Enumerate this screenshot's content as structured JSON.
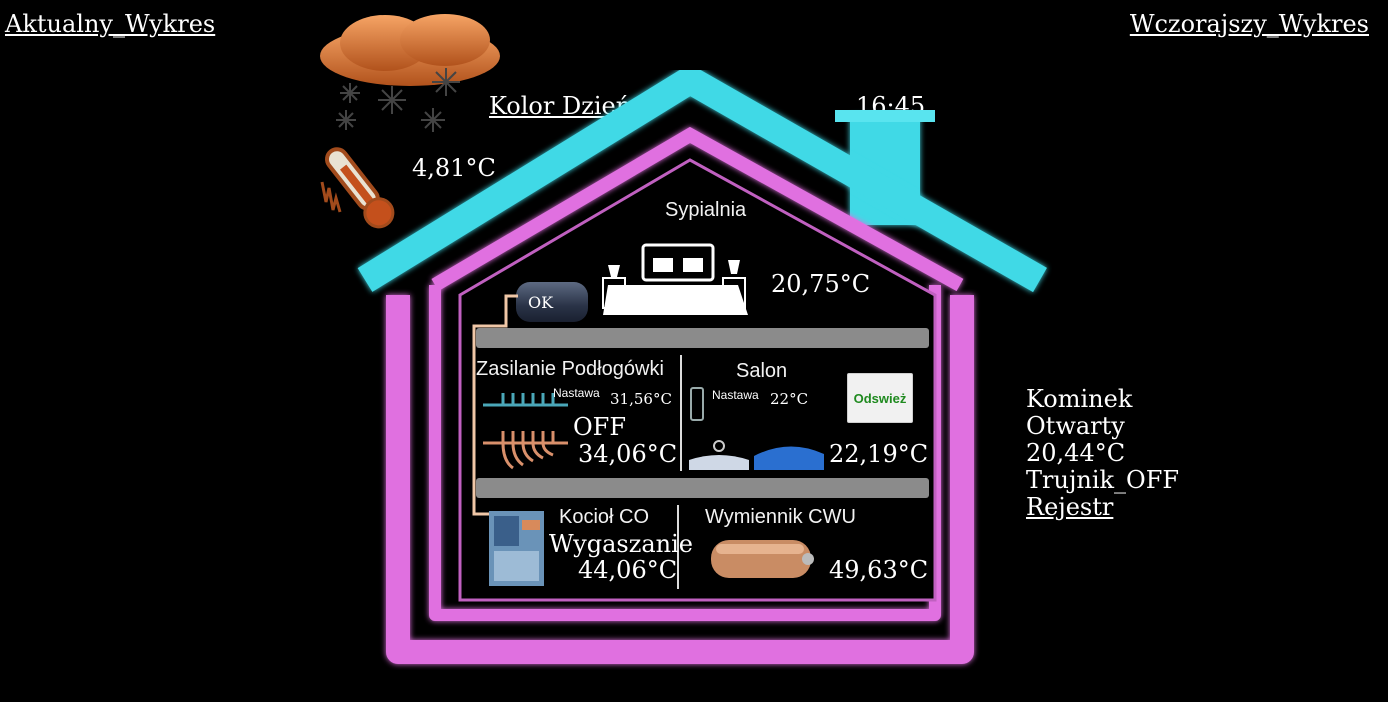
{
  "header": {
    "current_chart_link": "Aktualny_Wykres",
    "yesterday_chart_link": "Wczorajszy_Wykres",
    "color_mode_link": "Kolor Dzień",
    "time": "16:45"
  },
  "outdoor": {
    "temperature": "4,81°C"
  },
  "bedroom": {
    "title": "Sypialnia",
    "temperature": "20,75°C"
  },
  "tank": {
    "status": "OK"
  },
  "floor_heating": {
    "title": "Zasilanie Podłogówki",
    "setpoint_label": "Nastawa",
    "setpoint": "31,56°C",
    "state": "OFF",
    "temperature": "34,06°C"
  },
  "living_room": {
    "title": "Salon",
    "setpoint_label": "Nastawa",
    "setpoint": "22°C",
    "refresh_button": "Odswież",
    "temperature": "22,19°C"
  },
  "boiler": {
    "title": "Kocioł CO",
    "state": "Wygaszanie",
    "temperature": "44,06°C"
  },
  "heat_exchanger": {
    "title": "Wymiennik CWU",
    "temperature": "49,63°C"
  },
  "fireplace": {
    "title": "Kominek",
    "state": "Otwarty",
    "temperature": "20,44°C",
    "tee": "Trujnik_OFF",
    "register_link": "Rejestr"
  },
  "colors": {
    "roof_cyan": "#3fd9e6",
    "house_pink": "#e070e0",
    "refresh_green": "#1f8a1f"
  },
  "icons": [
    "snow-cloud-icon",
    "thermometer-icon",
    "bed-icon",
    "floor-heating-manifold-icon",
    "radiator-icon",
    "boiler-icon",
    "heat-exchanger-icon"
  ]
}
